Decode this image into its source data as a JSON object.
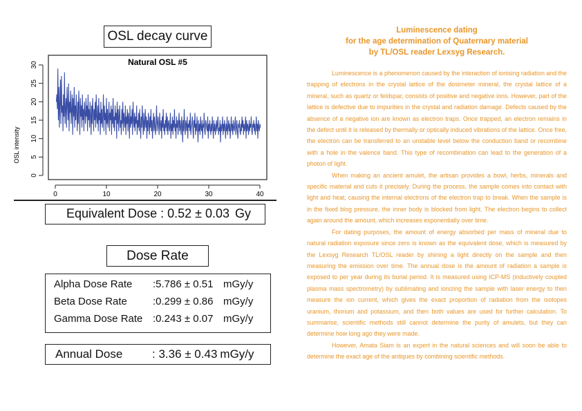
{
  "decay_box": {
    "title": "OSL decay curve"
  },
  "chart_data": {
    "type": "line",
    "title": "Natural OSL #5",
    "xlabel": "",
    "ylabel": "OSL intensity",
    "xlim": [
      0,
      40
    ],
    "ylim": [
      0,
      30
    ],
    "xticks": [
      "0",
      "10",
      "20",
      "30",
      "40"
    ],
    "yticks": [
      "0",
      "5",
      "10",
      "15",
      "20",
      "25",
      "30"
    ],
    "grid": false,
    "color": "#3a4ea6",
    "series": [
      {
        "x_step": 0.1,
        "x_start": 0.2,
        "values": [
          20,
          22,
          18,
          29,
          15,
          24,
          13,
          20,
          26,
          14,
          27,
          17,
          19,
          12,
          22,
          16,
          28,
          14,
          18,
          21,
          13,
          24,
          19,
          15,
          25,
          12,
          20,
          17,
          23,
          14,
          18,
          22,
          11,
          21,
          16,
          24,
          13,
          19,
          15,
          22,
          17,
          12,
          20,
          14,
          23,
          18,
          11,
          21,
          16,
          19,
          13,
          22,
          15,
          18,
          12,
          20,
          17,
          14,
          21,
          16,
          19,
          12,
          22,
          15,
          18,
          13,
          20,
          16,
          11,
          19,
          14,
          21,
          17,
          12,
          18,
          15,
          20,
          13,
          22,
          16,
          14,
          19,
          12,
          21,
          15,
          17,
          11,
          20,
          14,
          18,
          13,
          16,
          22,
          12,
          19,
          15,
          17,
          11,
          21,
          14,
          18,
          13,
          16,
          20,
          12,
          17,
          15,
          19,
          11,
          18,
          14,
          21,
          13,
          16,
          12,
          19,
          15,
          17,
          10,
          20,
          14,
          18,
          12,
          16,
          19,
          13,
          15,
          11,
          18,
          14,
          20,
          12,
          17,
          15,
          13,
          19,
          11,
          16,
          14,
          18,
          12,
          17,
          15,
          10,
          19,
          13,
          16,
          14,
          18,
          11,
          20,
          15,
          13,
          17,
          12,
          16,
          14,
          19,
          11,
          15,
          13,
          17,
          12,
          18,
          14,
          10,
          16,
          13,
          19,
          15,
          11,
          17,
          12,
          14,
          18,
          13,
          16,
          10,
          15,
          12,
          17,
          14,
          11,
          16,
          13,
          18,
          12,
          15,
          10,
          14,
          17,
          12,
          16,
          13,
          11,
          15,
          19,
          12,
          14,
          16,
          13,
          11,
          17,
          14,
          12,
          15,
          10,
          16,
          13,
          18,
          12,
          14,
          11,
          15,
          13,
          17,
          12,
          16,
          11,
          14,
          15,
          12,
          13,
          17,
          10,
          14,
          12,
          16,
          11,
          15,
          13,
          18,
          12,
          14,
          10,
          16,
          13,
          15,
          11,
          14,
          17,
          12,
          15,
          13,
          11,
          16,
          14,
          9,
          15,
          12,
          18,
          13,
          11,
          15,
          14,
          12,
          16,
          10,
          14,
          13,
          15,
          12,
          17,
          11,
          13,
          14,
          16,
          12,
          10,
          15,
          13,
          17,
          11,
          14,
          12,
          16,
          13,
          9,
          15,
          12,
          14,
          11,
          16,
          13,
          12,
          15,
          10,
          14,
          13,
          17,
          12,
          11,
          15,
          14,
          13,
          12,
          16,
          10,
          14,
          12,
          15,
          13,
          11,
          14,
          12,
          16,
          13,
          10,
          15,
          12,
          14,
          11,
          13,
          15,
          12,
          14,
          16,
          11,
          13,
          12,
          15,
          9,
          14,
          12,
          13,
          16,
          11,
          14,
          12,
          15,
          13,
          10,
          14,
          12,
          16,
          11,
          13,
          15,
          12,
          14,
          10,
          13,
          16,
          12,
          14,
          11,
          15,
          13,
          12,
          14,
          16,
          11,
          13,
          15,
          12,
          10,
          14,
          13,
          15,
          12,
          11,
          14,
          12,
          16,
          13,
          15,
          11,
          14,
          12,
          13,
          16,
          10,
          15,
          12,
          14,
          13,
          11,
          15,
          12,
          14,
          13,
          16,
          12,
          11,
          14,
          13,
          15,
          12,
          14,
          11,
          13,
          16,
          12,
          14,
          10,
          15,
          13,
          12,
          14,
          13
        ]
      }
    ]
  },
  "equivalent_dose": {
    "label": "Equivalent Dose",
    "value": ": 0.52 ± 0.03",
    "unit": "Gy"
  },
  "dose_rate_box": {
    "title": "Dose Rate"
  },
  "dose_rates": [
    {
      "label": "Alpha Dose Rate",
      "value": ":5.786 ± 0.51",
      "unit": "mGy/y"
    },
    {
      "label": "Beta Dose Rate",
      "value": ":0.299 ± 0.86",
      "unit": "mGy/y"
    },
    {
      "label": "Gamma Dose Rate",
      "value": ":0.243 ± 0.07",
      "unit": "mGy/y"
    }
  ],
  "annual_dose": {
    "label": "Annual Dose",
    "value": ": 3.36 ± 0.43",
    "unit": "mGy/y"
  },
  "article": {
    "heading": [
      "Luminescence dating",
      "for the age determination of Quaternary material",
      "by TL/OSL reader Lexsyg Research."
    ],
    "color": "#e8962a",
    "paragraphs": [
      "Luminescence is a phenomenon caused by the interaction of ionising radiation and the trapping of electrons in the crystal lattice of the dosimeter mineral, the crystal lattice of a mineral, such as quartz or feldspar, consists of positive and negative ions. However, part of the lattice is defective due to impurities in the crystal and radiation damage. Defects caused by the absence of a negative ion are known as electron traps. Once trapped, an electron remains in the defect until it is released by thermally or optically induced vibrations of the lattice. Once free, the electron can be transferred to an unstable level below the conduction band or recombine with a hole in the valence band. This type of recombination can lead to the generation of a photon of light.",
      "When making an ancient amulet, the artisan provides a bowl, herbs, minerals and specific material and cuts it precisely. During the process, the sample comes into contact with light and heat, causing the internal electrons of the electron trap to break. When the sample is in the fixed blog pressure, the inner body is blocked from light. The electron begins to collect again around the amount, which increases exponentially over time.",
      "For dating purposes, the amount of energy absorbed per mass of mineral due to natural radiation exposure since zero is known as the equivalent dose, which is measured by the Lexsyg Research TL/OSL reader by shining a light directly on the sample and then measuring the emission over time. The annual dose is the amount of radiation a sample is exposed to per year during its burial period. It is measured using ICP-MS (inductively coupled plasma mass spectrometry) by sublimating and ionizing the sample with laser energy to then measure the ion current, which gives the exact proportion of radiation from the isotopes uranium, thorium and potassium, and then both values are used for further calculation. To summarise, scientific methods still cannot determine the purity of amulets, but they can determine how long ago they were made.",
      "However, Amata Siam is an expert in the natural sciences and will soon be able to determine the exact age of the antiques by combining scientific methods."
    ]
  }
}
